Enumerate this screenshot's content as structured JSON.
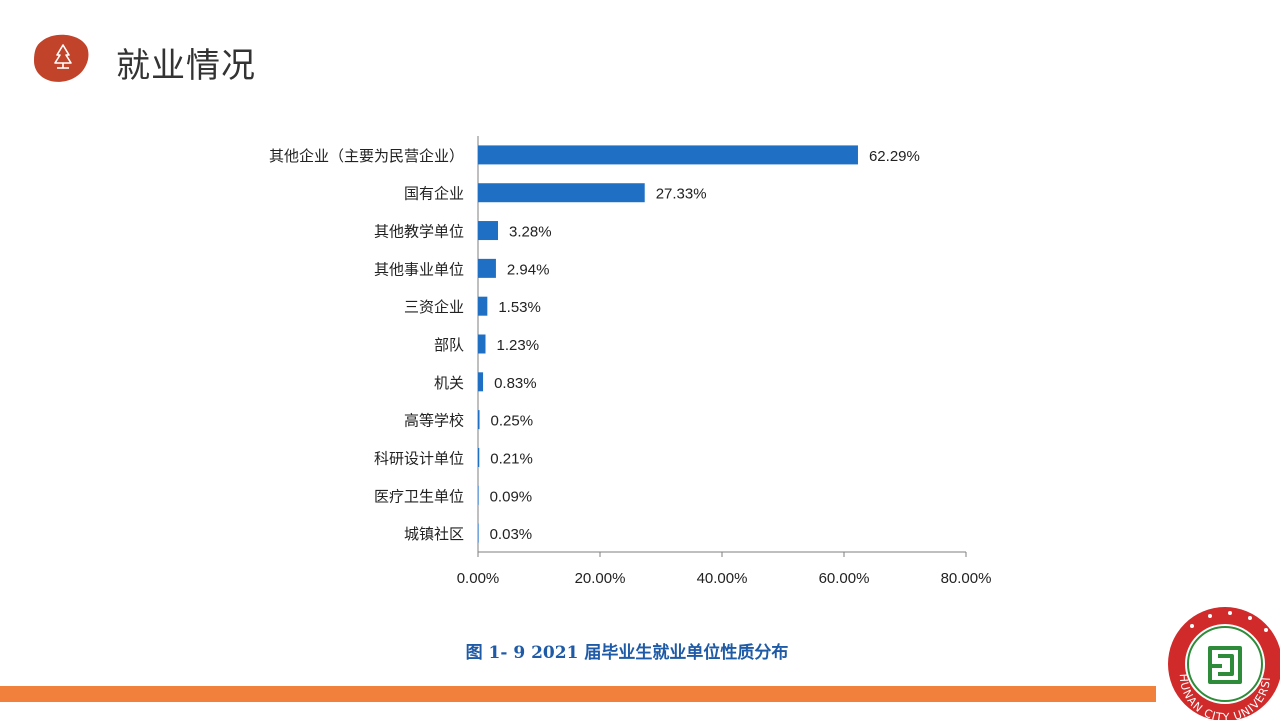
{
  "header": {
    "title": "就业情况",
    "badge_icon": "tree-icon",
    "badge_color": "#C0432A"
  },
  "chart_data": {
    "type": "bar",
    "orientation": "horizontal",
    "categories": [
      "其他企业（主要为民营企业）",
      "国有企业",
      "其他教学单位",
      "其他事业单位",
      "三资企业",
      "部队",
      "机关",
      "高等学校",
      "科研设计单位",
      "医疗卫生单位",
      "城镇社区"
    ],
    "values": [
      62.29,
      27.33,
      3.28,
      2.94,
      1.53,
      1.23,
      0.83,
      0.25,
      0.21,
      0.09,
      0.03
    ],
    "value_labels": [
      "62.29%",
      "27.33%",
      "3.28%",
      "2.94%",
      "1.53%",
      "1.23%",
      "0.83%",
      "0.25%",
      "0.21%",
      "0.09%",
      "0.03%"
    ],
    "xlim": [
      0,
      80
    ],
    "xticks": [
      0,
      20,
      40,
      60,
      80
    ],
    "xtick_labels": [
      "0.00%",
      "20.00%",
      "40.00%",
      "60.00%",
      "80.00%"
    ],
    "grid": false,
    "bar_color": "#1F6FC5",
    "caption": "图 1- 9    2021 届毕业生就业单位性质分布",
    "caption_color": "#1F5AA6"
  },
  "footer": {
    "bar_color": "#F0803C",
    "logo_icon": "university-seal-icon",
    "logo_text": "HUNAN CITY UNIVERSITY",
    "logo_color": "#D02A2A"
  }
}
